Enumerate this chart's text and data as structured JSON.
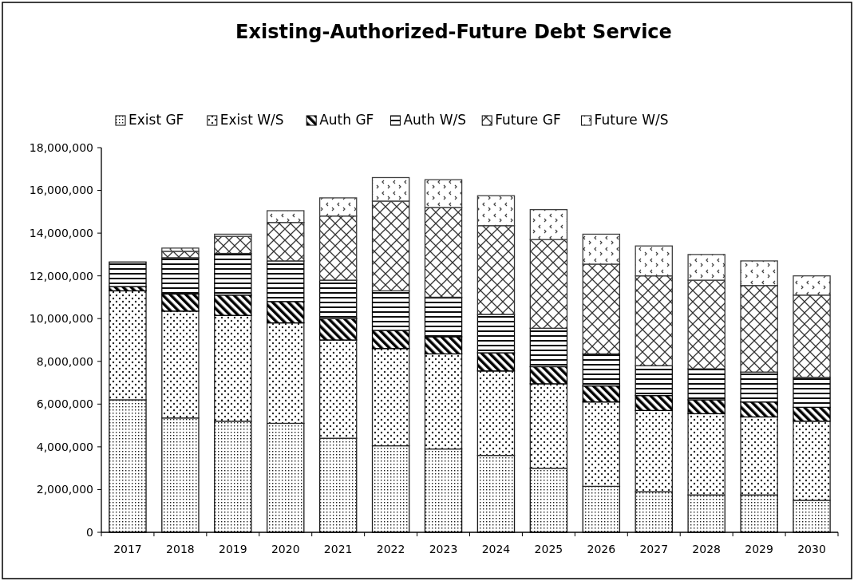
{
  "chart_data": {
    "type": "bar",
    "title": "Existing-Authorized-Future Debt Service",
    "stacked": true,
    "legend": "top left",
    "grid": false,
    "categories": [
      "2017",
      "2018",
      "2019",
      "2020",
      "2021",
      "2022",
      "2023",
      "2024",
      "2025",
      "2026",
      "2027",
      "2028",
      "2029",
      "2030"
    ],
    "ylim": [
      0,
      18000000
    ],
    "yticks": [
      {
        "value": 0,
        "label": "0"
      },
      {
        "value": 2000000,
        "label": "2,000,000"
      },
      {
        "value": 4000000,
        "label": "4,000,000"
      },
      {
        "value": 6000000,
        "label": "6,000,000"
      },
      {
        "value": 8000000,
        "label": "8,000,000"
      },
      {
        "value": 10000000,
        "label": "10,000,000"
      },
      {
        "value": 12000000,
        "label": "12,000,000"
      },
      {
        "value": 14000000,
        "label": "14,000,000"
      },
      {
        "value": 16000000,
        "label": "16,000,000"
      },
      {
        "value": 18000000,
        "label": "18,000,000"
      }
    ],
    "series": [
      {
        "name": "Exist GF",
        "color": "#1a1a1a",
        "values": [
          6200000,
          5350000,
          5200000,
          5100000,
          4400000,
          4050000,
          3900000,
          3600000,
          3000000,
          2150000,
          1900000,
          1750000,
          1750000,
          1500000
        ]
      },
      {
        "name": "Exist W/S",
        "color": "#262626",
        "values": [
          5100000,
          5000000,
          4950000,
          4700000,
          4600000,
          4550000,
          4450000,
          3950000,
          3950000,
          3950000,
          3800000,
          3800000,
          3650000,
          3700000
        ]
      },
      {
        "name": "Auth GF",
        "color": "#000000",
        "values": [
          200000,
          800000,
          950000,
          1000000,
          1000000,
          850000,
          800000,
          850000,
          800000,
          750000,
          700000,
          650000,
          700000,
          650000
        ]
      },
      {
        "name": "Auth W/S",
        "color": "#0d0d0d",
        "values": [
          1150000,
          1700000,
          1950000,
          1900000,
          1800000,
          1850000,
          1850000,
          1800000,
          1800000,
          1500000,
          1400000,
          1450000,
          1400000,
          1400000
        ]
      },
      {
        "name": "Future GF",
        "color": "#333333",
        "values": [
          0,
          300000,
          800000,
          1800000,
          3000000,
          4200000,
          4200000,
          4150000,
          4150000,
          4200000,
          4200000,
          4150000,
          4050000,
          3850000
        ]
      },
      {
        "name": "Future W/S",
        "color": "#404040",
        "values": [
          0,
          150000,
          100000,
          550000,
          850000,
          1100000,
          1300000,
          1400000,
          1400000,
          1400000,
          1400000,
          1200000,
          1150000,
          900000
        ]
      }
    ]
  }
}
